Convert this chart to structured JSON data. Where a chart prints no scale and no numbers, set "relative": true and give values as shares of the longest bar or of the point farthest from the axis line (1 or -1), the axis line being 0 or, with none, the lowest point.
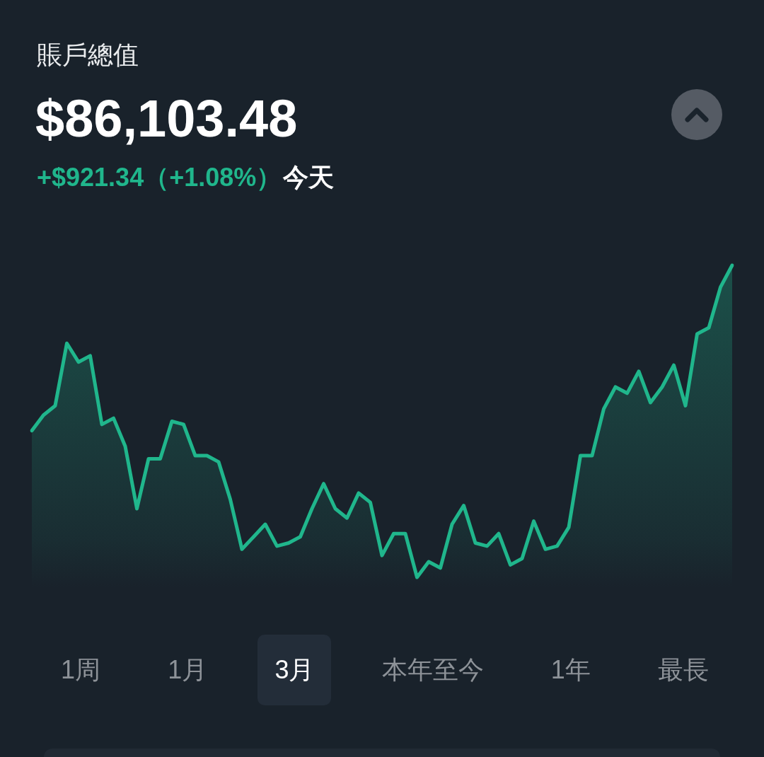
{
  "chart_data": {
    "type": "area",
    "title": "賬戶總值",
    "subtitle": "$86,103.48",
    "annotations": [
      "+$921.34（+1.08%）",
      "今天",
      "1周",
      "1月",
      "3月",
      "本年至今",
      "1年",
      "最長"
    ],
    "relative": true,
    "color": "#20b68c",
    "categories": [
      null,
      null,
      null,
      null,
      null,
      null,
      null,
      null,
      null,
      null,
      null,
      null,
      null,
      null,
      null,
      null,
      null,
      null,
      null,
      null,
      null,
      null,
      null,
      null,
      null,
      null,
      null,
      null,
      null,
      null,
      null,
      null,
      null,
      null,
      null,
      null,
      null,
      null,
      null,
      null,
      null,
      null,
      null,
      null,
      null,
      null,
      null,
      null,
      null,
      null,
      null,
      null,
      null,
      null,
      null,
      null,
      null,
      null,
      null,
      null,
      null
    ],
    "values": [
      0.47,
      0.52,
      0.55,
      0.75,
      0.69,
      0.71,
      0.49,
      0.51,
      0.42,
      0.22,
      0.38,
      0.38,
      0.5,
      0.49,
      0.39,
      0.39,
      0.37,
      0.25,
      0.09,
      0.13,
      0.17,
      0.1,
      0.11,
      0.13,
      0.22,
      0.3,
      0.22,
      0.19,
      0.27,
      0.24,
      0.07,
      0.14,
      0.14,
      0,
      0.05,
      0.03,
      0.17,
      0.23,
      0.11,
      0.1,
      0.14,
      0.04,
      0.06,
      0.18,
      0.09,
      0.1,
      0.16,
      0.39,
      0.39,
      0.54,
      0.61,
      0.59,
      0.66,
      0.56,
      0.61,
      0.68,
      0.55,
      0.78,
      0.8,
      0.93,
      1
    ]
  }
}
